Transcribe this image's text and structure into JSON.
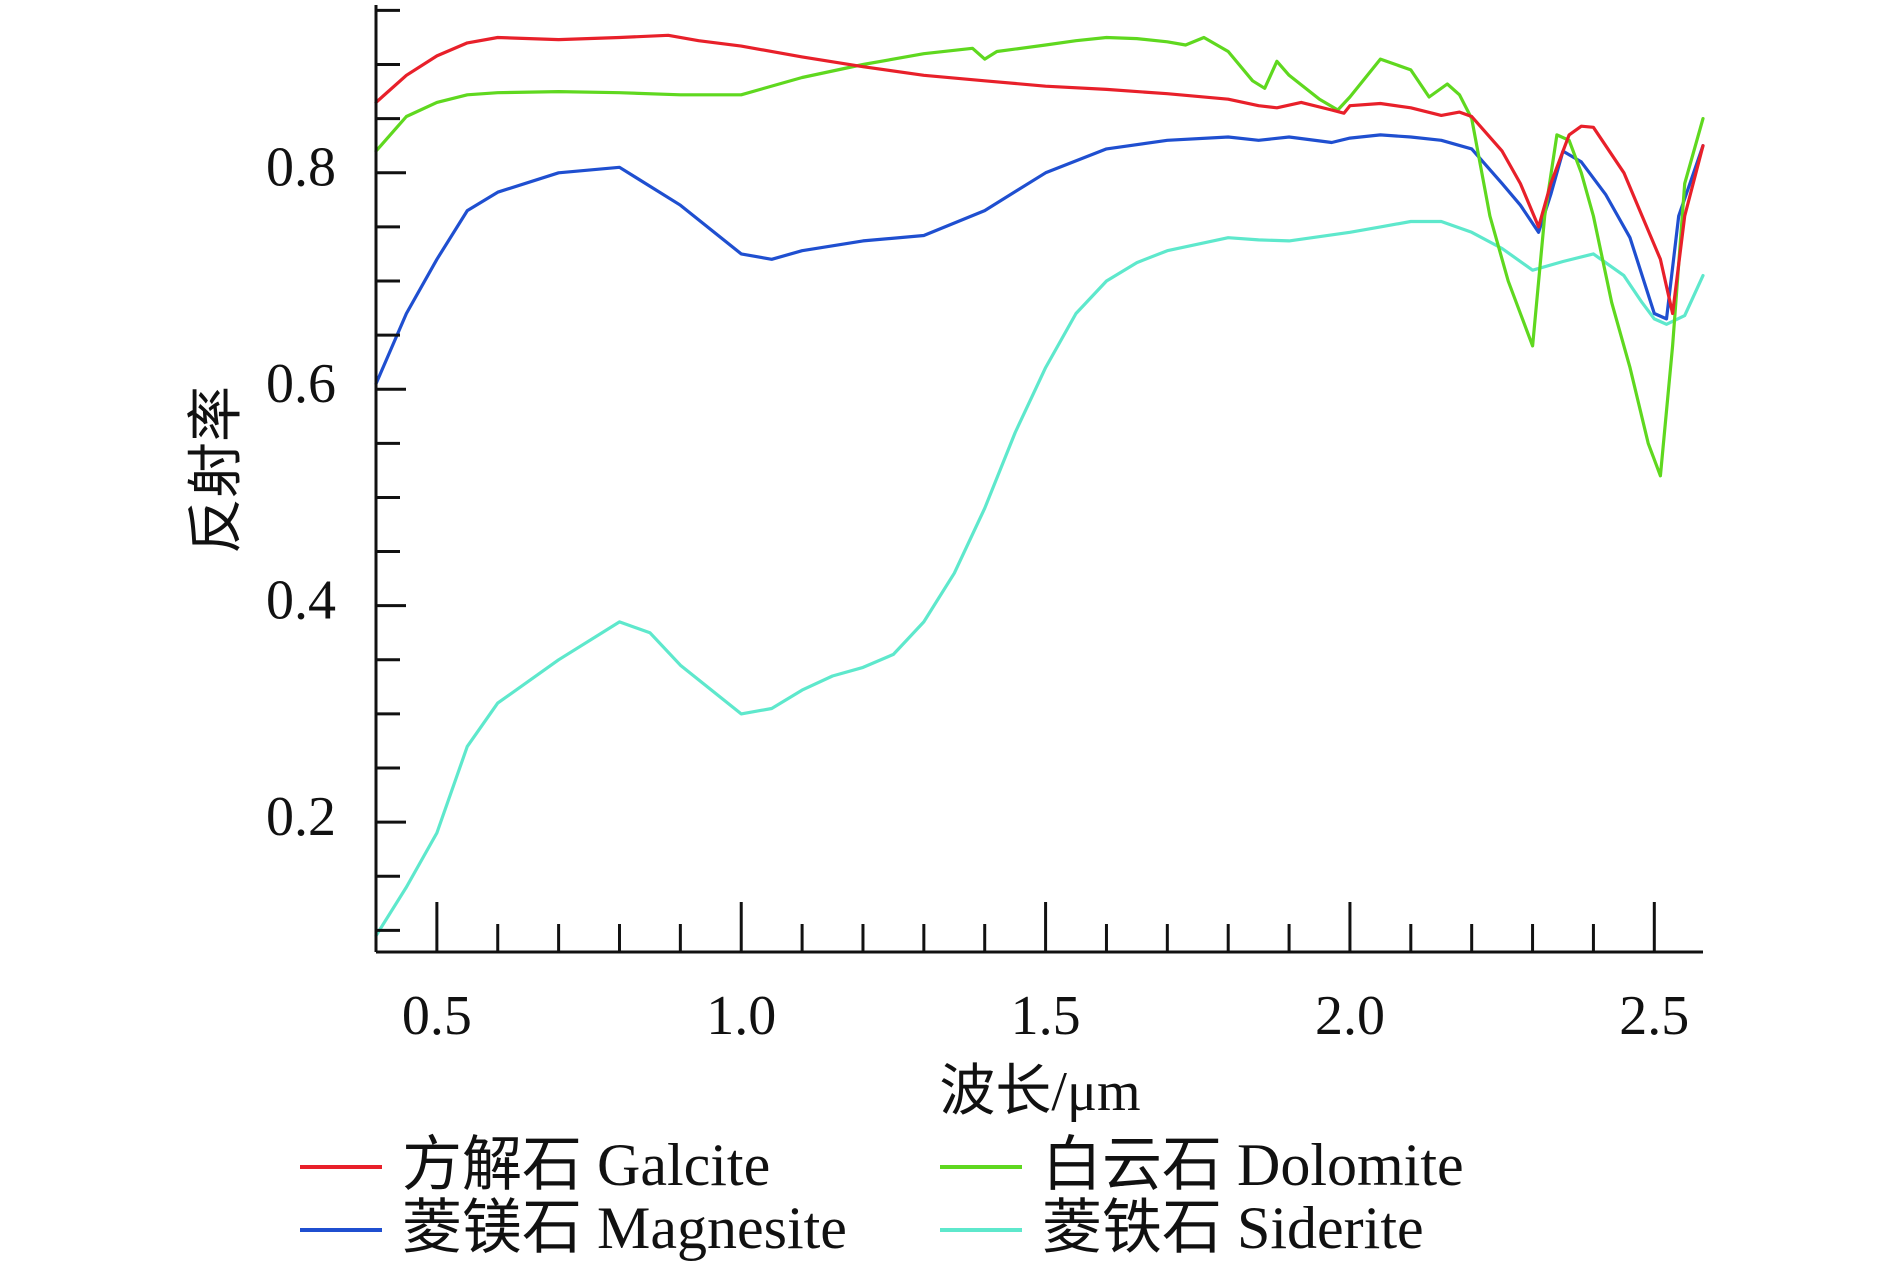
{
  "chart_data": {
    "type": "line",
    "xlabel": "波长/μm",
    "ylabel": "反射率",
    "xlim": [
      0.4,
      2.58
    ],
    "ylim": [
      0.08,
      0.955
    ],
    "xticks": [
      0.5,
      1.0,
      1.5,
      2.0,
      2.5
    ],
    "xtick_labels": [
      "0.5",
      "1.0",
      "1.5",
      "2.0",
      "2.5"
    ],
    "yticks": [
      0.2,
      0.4,
      0.6,
      0.8
    ],
    "ytick_labels": [
      "0.2",
      "0.4",
      "0.6",
      "0.8"
    ],
    "grid": false,
    "legend_position": "bottom",
    "series": [
      {
        "name": "方解石 Galcite",
        "color": "#e8202a",
        "x": [
          0.4,
          0.45,
          0.5,
          0.55,
          0.6,
          0.7,
          0.8,
          0.88,
          0.93,
          1.0,
          1.1,
          1.2,
          1.3,
          1.4,
          1.5,
          1.6,
          1.7,
          1.8,
          1.85,
          1.88,
          1.92,
          1.97,
          1.99,
          2.0,
          2.05,
          2.1,
          2.15,
          2.18,
          2.2,
          2.25,
          2.28,
          2.31,
          2.33,
          2.36,
          2.38,
          2.4,
          2.45,
          2.48,
          2.51,
          2.53,
          2.55,
          2.58
        ],
        "y": [
          0.865,
          0.89,
          0.908,
          0.92,
          0.925,
          0.923,
          0.925,
          0.927,
          0.922,
          0.917,
          0.907,
          0.898,
          0.89,
          0.885,
          0.88,
          0.877,
          0.873,
          0.868,
          0.862,
          0.86,
          0.865,
          0.858,
          0.855,
          0.862,
          0.864,
          0.86,
          0.853,
          0.856,
          0.852,
          0.82,
          0.79,
          0.75,
          0.79,
          0.835,
          0.843,
          0.842,
          0.8,
          0.76,
          0.72,
          0.67,
          0.76,
          0.825
        ]
      },
      {
        "name": "白云石 Dolomite",
        "color": "#5fd81f",
        "x": [
          0.4,
          0.45,
          0.5,
          0.55,
          0.6,
          0.7,
          0.8,
          0.9,
          1.0,
          1.1,
          1.2,
          1.3,
          1.38,
          1.4,
          1.42,
          1.5,
          1.55,
          1.6,
          1.65,
          1.7,
          1.73,
          1.76,
          1.8,
          1.84,
          1.86,
          1.88,
          1.9,
          1.95,
          1.98,
          2.0,
          2.05,
          2.1,
          2.13,
          2.16,
          2.18,
          2.2,
          2.23,
          2.26,
          2.28,
          2.3,
          2.32,
          2.34,
          2.36,
          2.38,
          2.4,
          2.43,
          2.46,
          2.49,
          2.51,
          2.53,
          2.55,
          2.58
        ],
        "y": [
          0.82,
          0.852,
          0.865,
          0.872,
          0.874,
          0.875,
          0.874,
          0.872,
          0.872,
          0.888,
          0.9,
          0.91,
          0.915,
          0.905,
          0.912,
          0.918,
          0.922,
          0.925,
          0.924,
          0.921,
          0.918,
          0.925,
          0.912,
          0.885,
          0.878,
          0.903,
          0.89,
          0.868,
          0.858,
          0.87,
          0.905,
          0.895,
          0.87,
          0.882,
          0.872,
          0.85,
          0.76,
          0.7,
          0.67,
          0.64,
          0.76,
          0.835,
          0.83,
          0.8,
          0.76,
          0.68,
          0.62,
          0.55,
          0.52,
          0.64,
          0.79,
          0.85
        ]
      },
      {
        "name": "菱镁石 Magnesite",
        "color": "#1f4fd0",
        "x": [
          0.4,
          0.45,
          0.5,
          0.55,
          0.6,
          0.7,
          0.8,
          0.9,
          1.0,
          1.05,
          1.1,
          1.2,
          1.3,
          1.4,
          1.5,
          1.6,
          1.7,
          1.8,
          1.85,
          1.9,
          1.97,
          2.0,
          2.05,
          2.1,
          2.15,
          2.2,
          2.25,
          2.28,
          2.31,
          2.33,
          2.35,
          2.38,
          2.42,
          2.46,
          2.5,
          2.52,
          2.54,
          2.58
        ],
        "y": [
          0.605,
          0.67,
          0.72,
          0.765,
          0.782,
          0.8,
          0.805,
          0.77,
          0.725,
          0.72,
          0.728,
          0.737,
          0.742,
          0.765,
          0.8,
          0.822,
          0.83,
          0.833,
          0.83,
          0.833,
          0.828,
          0.832,
          0.835,
          0.833,
          0.83,
          0.822,
          0.79,
          0.77,
          0.745,
          0.78,
          0.82,
          0.81,
          0.78,
          0.74,
          0.67,
          0.665,
          0.76,
          0.825
        ]
      },
      {
        "name": "菱铁石 Siderite",
        "color": "#5ee8cc",
        "x": [
          0.4,
          0.45,
          0.5,
          0.55,
          0.6,
          0.7,
          0.8,
          0.85,
          0.9,
          1.0,
          1.05,
          1.1,
          1.15,
          1.2,
          1.25,
          1.3,
          1.35,
          1.4,
          1.45,
          1.5,
          1.55,
          1.6,
          1.65,
          1.7,
          1.8,
          1.85,
          1.9,
          2.0,
          2.05,
          2.1,
          2.15,
          2.2,
          2.25,
          2.3,
          2.35,
          2.4,
          2.45,
          2.48,
          2.5,
          2.52,
          2.55,
          2.58
        ],
        "y": [
          0.095,
          0.14,
          0.19,
          0.27,
          0.31,
          0.35,
          0.385,
          0.375,
          0.345,
          0.3,
          0.305,
          0.322,
          0.335,
          0.343,
          0.355,
          0.385,
          0.43,
          0.49,
          0.56,
          0.62,
          0.67,
          0.7,
          0.717,
          0.728,
          0.74,
          0.738,
          0.737,
          0.745,
          0.75,
          0.755,
          0.755,
          0.745,
          0.73,
          0.71,
          0.718,
          0.725,
          0.705,
          0.68,
          0.665,
          0.66,
          0.668,
          0.705
        ]
      }
    ]
  }
}
